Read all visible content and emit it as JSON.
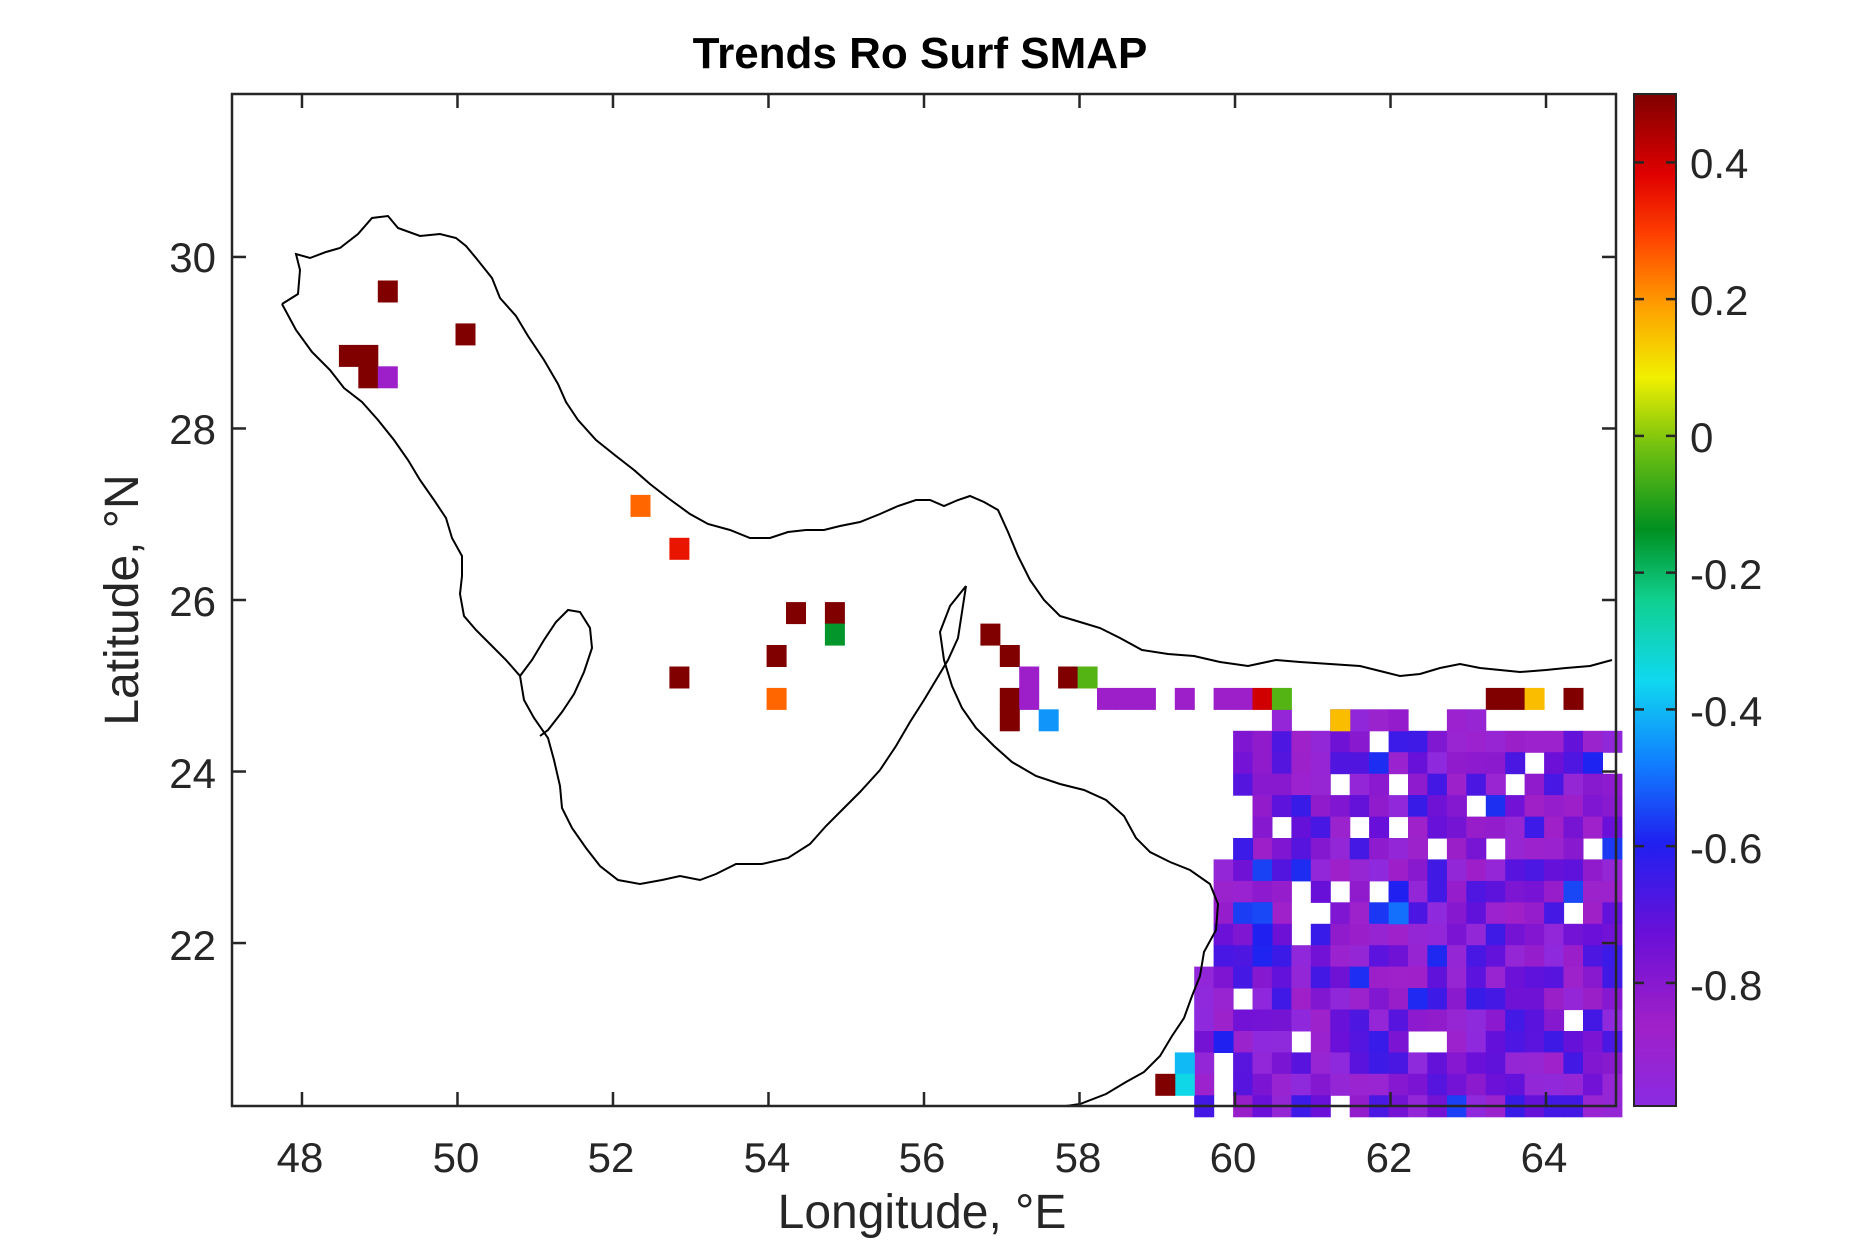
{
  "chart_data": {
    "type": "heatmap",
    "title": "Trends Ro Surf SMAP",
    "xlabel": "Longitude, °E",
    "ylabel": "Latitude, °N",
    "xlim": [
      47.1,
      64.9
    ],
    "ylim": [
      20.1,
      31.9
    ],
    "xticks": [
      48,
      50,
      52,
      54,
      56,
      58,
      60,
      62,
      64
    ],
    "yticks": [
      22,
      24,
      26,
      28,
      30
    ],
    "xtick_labels": [
      "48",
      "50",
      "52",
      "54",
      "56",
      "58",
      "60",
      "62",
      "64"
    ],
    "ytick_labels": [
      "22",
      "24",
      "26",
      "28",
      "30"
    ],
    "colorbar": {
      "range": [
        -0.98,
        0.5
      ],
      "ticks": [
        0.4,
        0.2,
        0,
        -0.2,
        -0.4,
        -0.6,
        -0.8
      ],
      "tick_labels": [
        "0.4",
        "0.2",
        "0",
        "-0.2",
        "-0.4",
        "-0.6",
        "-0.8"
      ],
      "colormap": "purple-blue-cyan-green-yellow-orange-red-darkred"
    },
    "cell_size_deg": 0.25,
    "points": [
      {
        "lon": 49.1,
        "lat": 29.6,
        "value": 0.5
      },
      {
        "lon": 50.1,
        "lat": 29.1,
        "value": 0.5
      },
      {
        "lon": 48.6,
        "lat": 28.85,
        "value": 0.5
      },
      {
        "lon": 48.85,
        "lat": 28.85,
        "value": 0.5
      },
      {
        "lon": 48.85,
        "lat": 28.6,
        "value": 0.5
      },
      {
        "lon": 49.1,
        "lat": 28.6,
        "value": -0.85
      },
      {
        "lon": 52.35,
        "lat": 27.1,
        "value": 0.25
      },
      {
        "lon": 52.85,
        "lat": 26.6,
        "value": 0.35
      },
      {
        "lon": 54.35,
        "lat": 25.85,
        "value": 0.5
      },
      {
        "lon": 54.85,
        "lat": 25.85,
        "value": 0.5
      },
      {
        "lon": 54.85,
        "lat": 25.6,
        "value": -0.15
      },
      {
        "lon": 54.1,
        "lat": 25.35,
        "value": 0.5
      },
      {
        "lon": 52.85,
        "lat": 25.1,
        "value": 0.5
      },
      {
        "lon": 54.1,
        "lat": 24.85,
        "value": 0.25
      },
      {
        "lon": 56.85,
        "lat": 25.6,
        "value": 0.5
      },
      {
        "lon": 57.1,
        "lat": 25.35,
        "value": 0.5
      },
      {
        "lon": 57.35,
        "lat": 25.1,
        "value": -0.85
      },
      {
        "lon": 57.85,
        "lat": 25.1,
        "value": 0.5
      },
      {
        "lon": 58.1,
        "lat": 25.1,
        "value": -0.05
      },
      {
        "lon": 57.1,
        "lat": 24.85,
        "value": 0.5
      },
      {
        "lon": 57.35,
        "lat": 24.85,
        "value": -0.85
      },
      {
        "lon": 57.1,
        "lat": 24.6,
        "value": 0.5
      },
      {
        "lon": 57.6,
        "lat": 24.6,
        "value": -0.45
      },
      {
        "lon": 58.35,
        "lat": 24.85,
        "value": -0.85
      },
      {
        "lon": 58.6,
        "lat": 24.85,
        "value": -0.85
      },
      {
        "lon": 58.85,
        "lat": 24.85,
        "value": -0.85
      },
      {
        "lon": 59.35,
        "lat": 24.85,
        "value": -0.85
      },
      {
        "lon": 59.85,
        "lat": 24.85,
        "value": -0.85
      },
      {
        "lon": 60.1,
        "lat": 24.85,
        "value": -0.85
      },
      {
        "lon": 60.35,
        "lat": 24.85,
        "value": 0.4
      },
      {
        "lon": 60.6,
        "lat": 24.85,
        "value": -0.05
      },
      {
        "lon": 61.35,
        "lat": 24.6,
        "value": 0.15
      },
      {
        "lon": 63.35,
        "lat": 24.85,
        "value": 0.5
      },
      {
        "lon": 63.6,
        "lat": 24.85,
        "value": 0.5
      },
      {
        "lon": 63.85,
        "lat": 24.85,
        "value": 0.15
      },
      {
        "lon": 64.35,
        "lat": 24.85,
        "value": 0.5
      },
      {
        "lon": 59.35,
        "lat": 20.6,
        "value": -0.4
      },
      {
        "lon": 59.35,
        "lat": 20.35,
        "value": -0.35
      },
      {
        "lon": 59.1,
        "lat": 20.35,
        "value": 0.5
      },
      {
        "lon": 59.85,
        "lat": 20.85,
        "value": -0.6
      },
      {
        "lon": 60.1,
        "lat": 23.1,
        "value": -0.65
      },
      {
        "lon": 60.35,
        "lat": 22.35,
        "value": -0.55
      },
      {
        "lon": 60.35,
        "lat": 22.1,
        "value": -0.6
      },
      {
        "lon": 62.1,
        "lat": 22.6,
        "value": -0.6
      },
      {
        "lon": 62.1,
        "lat": 22.35,
        "value": -0.5
      }
    ],
    "purple_region": {
      "note": "dense field of cells with values between -0.98 and -0.6",
      "lon_range": [
        59.35,
        64.9
      ],
      "lat_range": [
        20.1,
        24.85
      ],
      "typical_value": -0.8
    }
  }
}
